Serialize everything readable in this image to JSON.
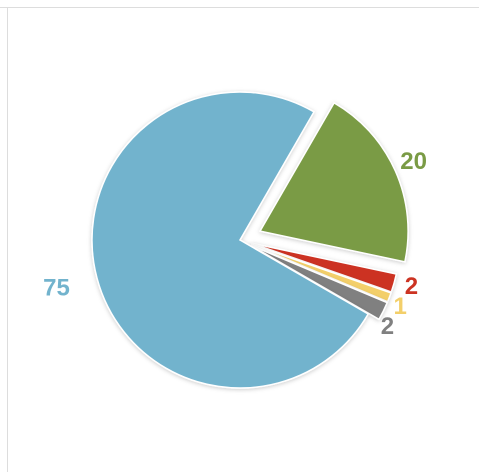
{
  "chart_data": {
    "type": "pie",
    "values": [
      20,
      2,
      1,
      2,
      75
    ],
    "colors": [
      "#7a9b45",
      "#cc3322",
      "#f3cf6a",
      "#808080",
      "#72b3cd"
    ],
    "explode": [
      true,
      true,
      true,
      true,
      false
    ]
  }
}
